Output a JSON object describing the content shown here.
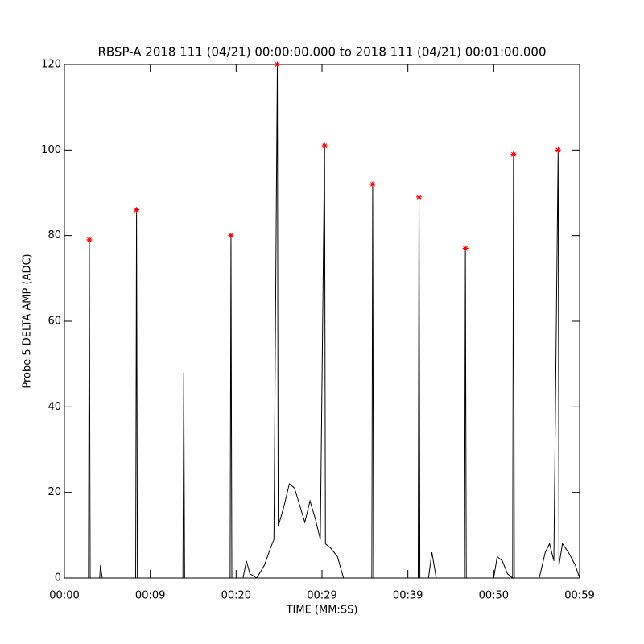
{
  "chart_data": {
    "type": "line",
    "title": "RBSP-A 2018 111 (04/21) 00:00:00.000 to 2018 111 (04/21) 00:01:00.000",
    "xlabel": "TIME (MM:SS)",
    "ylabel": "Probe 5 DELTA AMP (ADC)",
    "xlim": [
      0,
      60
    ],
    "ylim": [
      0,
      120
    ],
    "xticks": [
      {
        "value": 0,
        "label": "00:00"
      },
      {
        "value": 10,
        "label": "00:09"
      },
      {
        "value": 20,
        "label": "00:20"
      },
      {
        "value": 30,
        "label": "00:29"
      },
      {
        "value": 40,
        "label": "00:39"
      },
      {
        "value": 50,
        "label": "00:50"
      },
      {
        "value": 60,
        "label": "00:59"
      }
    ],
    "yticks": [
      0,
      20,
      40,
      60,
      80,
      100,
      120
    ],
    "grid": false,
    "line": {
      "color": "#000000",
      "x": [
        0,
        2.8,
        2.9,
        3.0,
        4.1,
        4.2,
        4.4,
        8.3,
        8.4,
        8.5,
        13.8,
        13.9,
        14.0,
        19.3,
        19.4,
        19.5,
        20.8,
        21.2,
        21.6,
        22.4,
        23.3,
        24.0,
        24.4,
        24.8,
        24.9,
        25.6,
        26.2,
        26.8,
        27.4,
        28.0,
        28.6,
        29.2,
        29.8,
        30.3,
        30.4,
        31.0,
        31.8,
        32.5,
        35.8,
        35.9,
        36.0,
        41.2,
        41.3,
        41.4,
        42.4,
        42.8,
        43.3,
        46.6,
        46.7,
        46.8,
        50.0,
        50.4,
        51.0,
        51.6,
        52.2,
        52.3,
        52.4,
        55.3,
        56.0,
        56.5,
        57.0,
        57.5,
        57.6,
        58.0,
        58.7,
        59.5,
        60
      ],
      "y": [
        0,
        0,
        79,
        0,
        0,
        3,
        0,
        0,
        86,
        0,
        0,
        48,
        0,
        0,
        80,
        0,
        0,
        4,
        1,
        0,
        3,
        7,
        9,
        120,
        12,
        17,
        22,
        21,
        17,
        13,
        18,
        14,
        9,
        101,
        8,
        7,
        5,
        0,
        0,
        92,
        0,
        0,
        89,
        0,
        0,
        6,
        0,
        0,
        77,
        0,
        0,
        5,
        4,
        1,
        0,
        99,
        0,
        0,
        6,
        8,
        4,
        100,
        3,
        8,
        6,
        3,
        0
      ]
    },
    "markers": {
      "color": "#ff0000",
      "x": [
        2.9,
        8.4,
        19.4,
        24.8,
        30.3,
        35.9,
        41.3,
        46.7,
        52.3,
        57.5
      ],
      "y": [
        79,
        86,
        80,
        120,
        101,
        92,
        89,
        77,
        99,
        100
      ]
    }
  }
}
